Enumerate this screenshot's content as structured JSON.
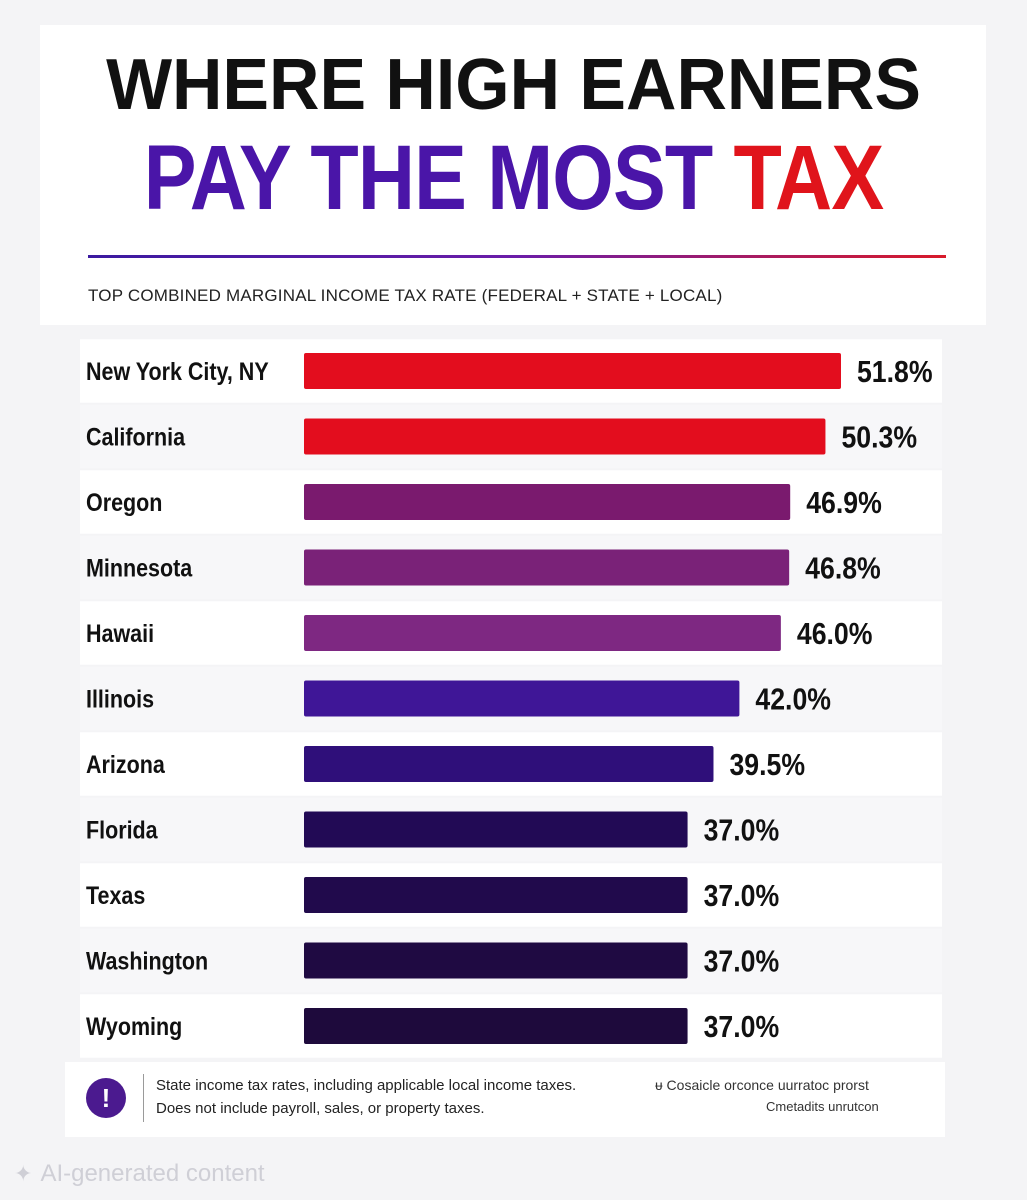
{
  "title": {
    "line1": "WHERE HIGH EARNERS",
    "line2_part1": "PAY THE MOST",
    "line2_part2": "TAX"
  },
  "subtitle": "TOP COMBINED MARGINAL INCOME TAX RATE (FEDERAL + STATE + LOCAL)",
  "chart_data": {
    "type": "bar",
    "orientation": "horizontal",
    "categories": [
      "New York City, NY",
      "California",
      "Oregon",
      "Minnesota",
      "Hawaii",
      "Illinois",
      "Arizona",
      "Florida",
      "Texas",
      "Washington",
      "Wyoming"
    ],
    "values": [
      51.8,
      50.3,
      46.9,
      46.8,
      46.0,
      42.0,
      39.5,
      37.0,
      37.0,
      37.0,
      37.0
    ],
    "labels": [
      "51.8%",
      "50.3%",
      "46.9%",
      "46.8%",
      "46.0%",
      "42.0%",
      "39.5%",
      "37.0%",
      "37.0%",
      "37.0%",
      "37.0%"
    ],
    "colors": [
      "#e30d1e",
      "#e30d1e",
      "#7a1a6e",
      "#7a2278",
      "#7e2882",
      "#3f1697",
      "#2f0f7a",
      "#220a55",
      "#210a4c",
      "#1f0a42",
      "#1e0a3c"
    ],
    "bar_domain": [
      0,
      51.8
    ],
    "grid": false
  },
  "footer": {
    "icon": "exclamation-icon",
    "icon_glyph": "!",
    "note_line1": "State income tax rates, including applicable local income taxes.",
    "note_line2": "Does not include payroll, sales, or property taxes.",
    "side_line1": "ᵾ Cosaicle orconce uurratoc prorst",
    "side_line2": "Cmetadits unrutcon"
  },
  "badge": {
    "icon": "sparkle-icon",
    "text": "AI-generated content"
  }
}
